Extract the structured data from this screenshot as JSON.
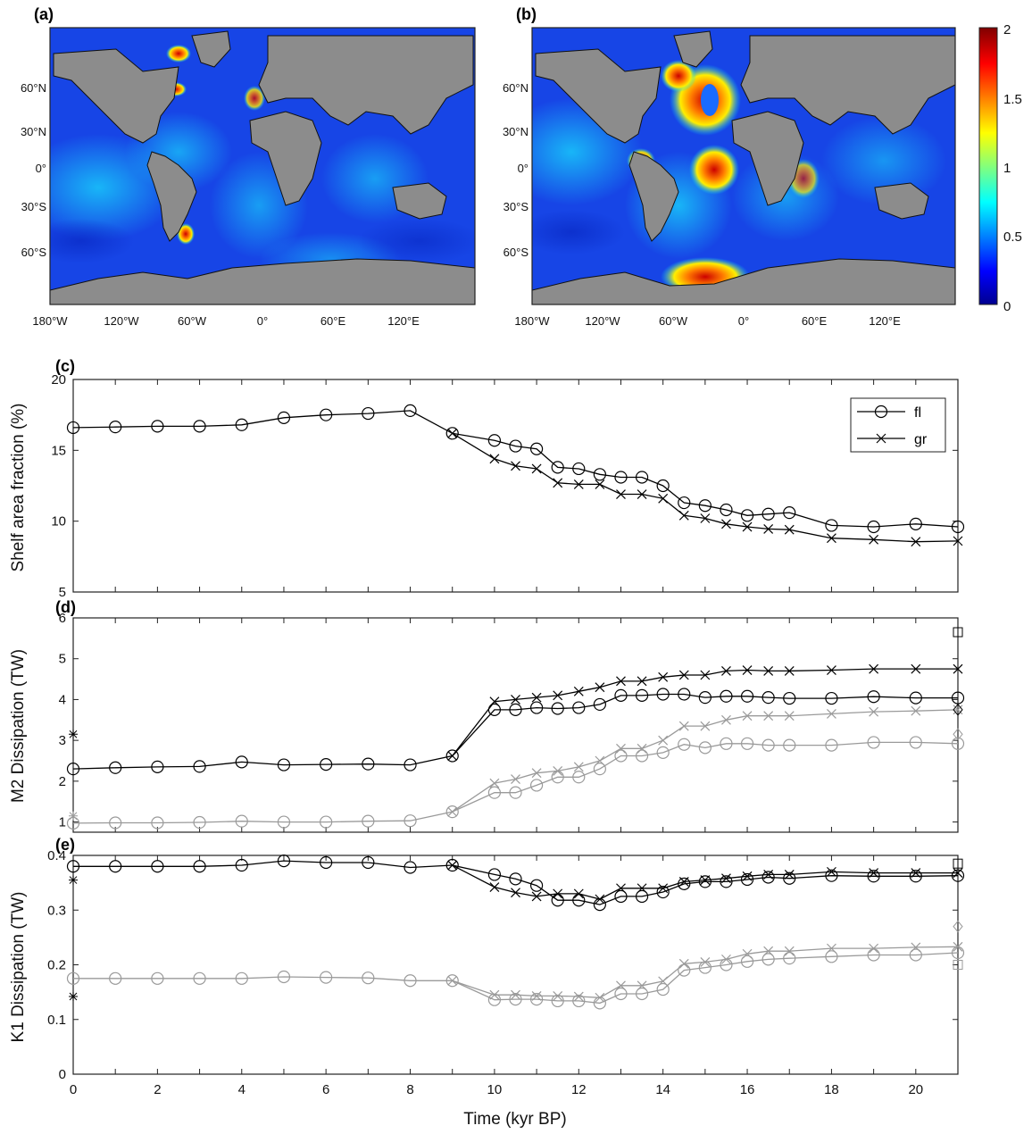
{
  "colors": {
    "ocean_low": "#00008f",
    "ocean_mid": "#29a9ff",
    "ocean_high": "#b40000",
    "land": "#8c8c8c",
    "series_dark": "#000000",
    "series_light": "#9a9a9a"
  },
  "maps": {
    "panel_a_label": "(a)",
    "panel_b_label": "(b)",
    "lat_ticks": [
      "60°N",
      "30°N",
      "0°",
      "30°S",
      "60°S"
    ],
    "lon_ticks": [
      "180°W",
      "120°W",
      "60°W",
      "0°",
      "60°E",
      "120°E"
    ],
    "colorbar": {
      "ticks": [
        "2",
        "1.5",
        "1",
        "0.5",
        "0"
      ],
      "range": [
        0,
        2
      ]
    }
  },
  "chart_data": [
    {
      "type": "line",
      "panel_label": "(c)",
      "xlabel": "",
      "ylabel": "Shelf area fraction (%)",
      "xlim": [
        0,
        21
      ],
      "ylim": [
        5,
        20
      ],
      "yticks": [
        5,
        10,
        15,
        20
      ],
      "legend": {
        "placement": "top-right",
        "entries": [
          "fl",
          "gr"
        ]
      },
      "series": [
        {
          "name": "fl",
          "marker": "circle",
          "tone": "dark",
          "x": [
            0,
            1,
            2,
            3,
            4,
            5,
            6,
            7,
            8,
            9,
            10,
            10.5,
            11,
            11.5,
            12,
            12.5,
            13,
            13.5,
            14,
            14.5,
            15,
            15.5,
            16,
            16.5,
            17,
            18,
            19,
            20,
            21
          ],
          "y": [
            16.6,
            16.65,
            16.7,
            16.7,
            16.8,
            17.3,
            17.5,
            17.6,
            17.8,
            16.2,
            15.7,
            15.3,
            15.1,
            13.8,
            13.7,
            13.3,
            13.1,
            13.1,
            12.5,
            11.3,
            11.1,
            10.8,
            10.4,
            10.5,
            10.6,
            9.7,
            9.6,
            9.8,
            9.6
          ]
        },
        {
          "name": "gr",
          "marker": "x",
          "tone": "dark",
          "x": [
            9,
            10,
            10.5,
            11,
            11.5,
            12,
            12.5,
            13,
            13.5,
            14,
            14.5,
            15,
            15.5,
            16,
            16.5,
            17,
            18,
            19,
            20,
            21
          ],
          "y": [
            16.2,
            14.4,
            13.9,
            13.7,
            12.7,
            12.6,
            12.6,
            11.9,
            11.9,
            11.6,
            10.4,
            10.2,
            9.8,
            9.6,
            9.45,
            9.4,
            8.8,
            8.7,
            8.55,
            8.6
          ]
        }
      ]
    },
    {
      "type": "line",
      "panel_label": "(d)",
      "xlabel": "",
      "ylabel": "M2 Dissipation (TW)",
      "xlim": [
        0,
        21
      ],
      "ylim": [
        0.75,
        6
      ],
      "yticks": [
        1,
        2,
        3,
        4,
        5,
        6
      ],
      "series": [
        {
          "name": "",
          "marker": "circle",
          "tone": "dark",
          "x": [
            0,
            1,
            2,
            3,
            4,
            5,
            6,
            7,
            8,
            9,
            10,
            10.5,
            11,
            11.5,
            12,
            12.5,
            13,
            13.5,
            14,
            14.5,
            15,
            15.5,
            16,
            16.5,
            17,
            18,
            19,
            20,
            21
          ],
          "y": [
            2.3,
            2.33,
            2.35,
            2.36,
            2.47,
            2.4,
            2.41,
            2.42,
            2.4,
            2.62,
            3.75,
            3.75,
            3.8,
            3.78,
            3.8,
            3.88,
            4.1,
            4.1,
            4.13,
            4.13,
            4.05,
            4.08,
            4.08,
            4.05,
            4.03,
            4.03,
            4.07,
            4.04,
            4.04
          ]
        },
        {
          "name": "",
          "marker": "x",
          "tone": "dark",
          "x": [
            9,
            10,
            10.5,
            11,
            11.5,
            12,
            12.5,
            13,
            13.5,
            14,
            14.5,
            15,
            15.5,
            16,
            16.5,
            17,
            18,
            19,
            20,
            21
          ],
          "y": [
            2.62,
            3.95,
            4.0,
            4.05,
            4.1,
            4.2,
            4.3,
            4.45,
            4.45,
            4.55,
            4.6,
            4.6,
            4.7,
            4.72,
            4.7,
            4.7,
            4.72,
            4.75,
            4.75,
            4.75
          ]
        },
        {
          "name": "",
          "marker": "circle",
          "tone": "light",
          "x": [
            0,
            1,
            2,
            3,
            4,
            5,
            6,
            7,
            8,
            9,
            10,
            10.5,
            11,
            11.5,
            12,
            12.5,
            13,
            13.5,
            14,
            14.5,
            15,
            15.5,
            16,
            16.5,
            17,
            18,
            19,
            20,
            21
          ],
          "y": [
            0.97,
            0.98,
            0.98,
            0.99,
            1.02,
            1.0,
            1.0,
            1.02,
            1.03,
            1.25,
            1.72,
            1.72,
            1.9,
            2.1,
            2.1,
            2.3,
            2.62,
            2.62,
            2.7,
            2.9,
            2.82,
            2.92,
            2.92,
            2.88,
            2.88,
            2.88,
            2.95,
            2.95,
            2.92
          ]
        },
        {
          "name": "",
          "marker": "x",
          "tone": "light",
          "x": [
            9,
            10,
            10.5,
            11,
            11.5,
            12,
            12.5,
            13,
            13.5,
            14,
            14.5,
            15,
            15.5,
            16,
            16.5,
            17,
            18,
            19,
            20,
            21
          ],
          "y": [
            1.25,
            1.95,
            2.05,
            2.2,
            2.25,
            2.35,
            2.5,
            2.8,
            2.8,
            3.0,
            3.35,
            3.35,
            3.5,
            3.6,
            3.6,
            3.6,
            3.65,
            3.7,
            3.72,
            3.75
          ]
        }
      ],
      "extra_markers": [
        {
          "x": 0,
          "y": 3.15,
          "marker": "star",
          "tone": "dark"
        },
        {
          "x": 0,
          "y": 1.15,
          "marker": "star",
          "tone": "light"
        },
        {
          "x": 21,
          "y": 5.65,
          "marker": "square",
          "tone": "dark"
        },
        {
          "x": 21,
          "y": 3.75,
          "marker": "diamond",
          "tone": "dark"
        },
        {
          "x": 21,
          "y": 3.15,
          "marker": "diamond",
          "tone": "light"
        }
      ]
    },
    {
      "type": "line",
      "panel_label": "(e)",
      "xlabel": "Time (kyr BP)",
      "ylabel": "K1 Dissipation (TW)",
      "xlim": [
        0,
        21
      ],
      "ylim": [
        0,
        0.4
      ],
      "yticks": [
        0,
        0.1,
        0.2,
        0.3,
        0.4
      ],
      "xticks": [
        0,
        2,
        4,
        6,
        8,
        10,
        12,
        14,
        16,
        18,
        20
      ],
      "series": [
        {
          "name": "",
          "marker": "circle",
          "tone": "dark",
          "x": [
            0,
            1,
            2,
            3,
            4,
            5,
            6,
            7,
            8,
            9,
            10,
            10.5,
            11,
            11.5,
            12,
            12.5,
            13,
            13.5,
            14,
            14.5,
            15,
            15.5,
            16,
            16.5,
            17,
            18,
            19,
            20,
            21
          ],
          "y": [
            0.38,
            0.38,
            0.38,
            0.38,
            0.382,
            0.39,
            0.387,
            0.387,
            0.378,
            0.382,
            0.365,
            0.357,
            0.345,
            0.318,
            0.318,
            0.31,
            0.325,
            0.325,
            0.333,
            0.348,
            0.352,
            0.352,
            0.356,
            0.36,
            0.358,
            0.363,
            0.362,
            0.362,
            0.363
          ]
        },
        {
          "name": "",
          "marker": "x",
          "tone": "dark",
          "x": [
            9,
            10,
            10.5,
            11,
            11.5,
            12,
            12.5,
            13,
            13.5,
            14,
            14.5,
            15,
            15.5,
            16,
            16.5,
            17,
            18,
            19,
            20,
            21
          ],
          "y": [
            0.382,
            0.342,
            0.332,
            0.325,
            0.33,
            0.33,
            0.32,
            0.34,
            0.34,
            0.34,
            0.352,
            0.355,
            0.358,
            0.362,
            0.365,
            0.365,
            0.37,
            0.368,
            0.368,
            0.368
          ]
        },
        {
          "name": "",
          "marker": "circle",
          "tone": "light",
          "x": [
            0,
            1,
            2,
            3,
            4,
            5,
            6,
            7,
            8,
            9,
            10,
            10.5,
            11,
            11.5,
            12,
            12.5,
            13,
            13.5,
            14,
            14.5,
            15,
            15.5,
            16,
            16.5,
            17,
            18,
            19,
            20,
            21
          ],
          "y": [
            0.175,
            0.175,
            0.175,
            0.175,
            0.175,
            0.178,
            0.177,
            0.176,
            0.171,
            0.171,
            0.136,
            0.137,
            0.137,
            0.134,
            0.134,
            0.13,
            0.147,
            0.147,
            0.155,
            0.19,
            0.195,
            0.2,
            0.206,
            0.21,
            0.212,
            0.215,
            0.218,
            0.218,
            0.222
          ]
        },
        {
          "name": "",
          "marker": "x",
          "tone": "light",
          "x": [
            9,
            10,
            10.5,
            11,
            11.5,
            12,
            12.5,
            13,
            13.5,
            14,
            14.5,
            15,
            15.5,
            16,
            16.5,
            17,
            18,
            19,
            20,
            21
          ],
          "y": [
            0.171,
            0.145,
            0.145,
            0.143,
            0.143,
            0.142,
            0.14,
            0.162,
            0.162,
            0.17,
            0.202,
            0.205,
            0.21,
            0.22,
            0.225,
            0.225,
            0.23,
            0.23,
            0.232,
            0.233
          ]
        }
      ],
      "extra_markers": [
        {
          "x": 0,
          "y": 0.355,
          "marker": "star",
          "tone": "dark"
        },
        {
          "x": 0,
          "y": 0.142,
          "marker": "star",
          "tone": "dark"
        },
        {
          "x": 21,
          "y": 0.385,
          "marker": "square",
          "tone": "dark"
        },
        {
          "x": 21,
          "y": 0.27,
          "marker": "diamond",
          "tone": "light"
        },
        {
          "x": 21,
          "y": 0.2,
          "marker": "square",
          "tone": "light"
        }
      ]
    }
  ]
}
